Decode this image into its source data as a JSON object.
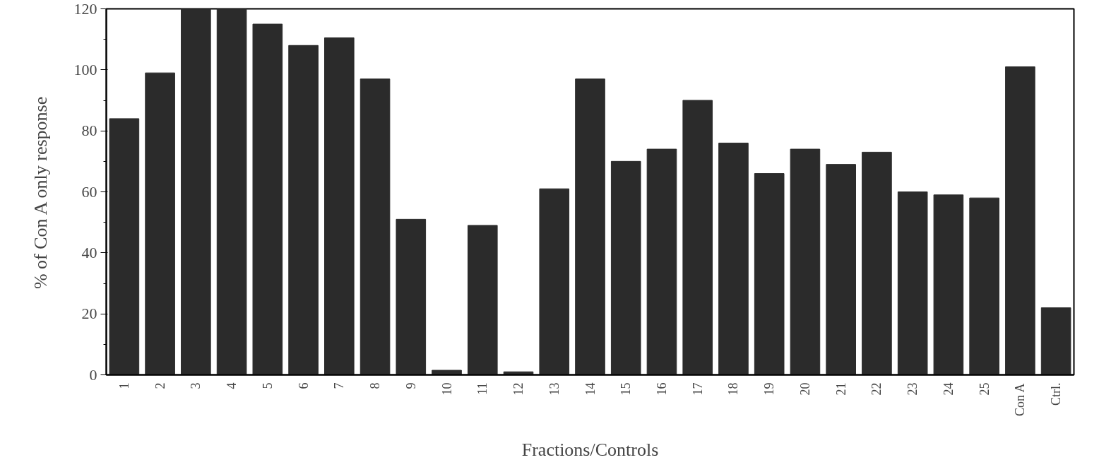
{
  "chart_data": {
    "type": "bar",
    "xlabel": "Fractions/Controls",
    "ylabel": "% of Con A only response",
    "categories": [
      "1",
      "2",
      "3",
      "4",
      "5",
      "6",
      "7",
      "8",
      "9",
      "10",
      "11",
      "12",
      "13",
      "14",
      "15",
      "16",
      "17",
      "18",
      "19",
      "20",
      "21",
      "22",
      "23",
      "24",
      "25",
      "Con A",
      "Ctrl."
    ],
    "values": [
      84,
      99,
      120,
      120,
      115,
      108,
      110.5,
      97,
      51,
      1.5,
      49,
      1,
      61,
      97,
      70,
      74,
      90,
      76,
      66,
      74,
      69,
      73,
      60,
      59,
      58,
      101,
      22
    ],
    "color": "#2b2b2b",
    "ylim": [
      0,
      120
    ],
    "yticks": [
      0,
      20,
      40,
      60,
      80,
      100,
      120
    ],
    "grid": false
  }
}
